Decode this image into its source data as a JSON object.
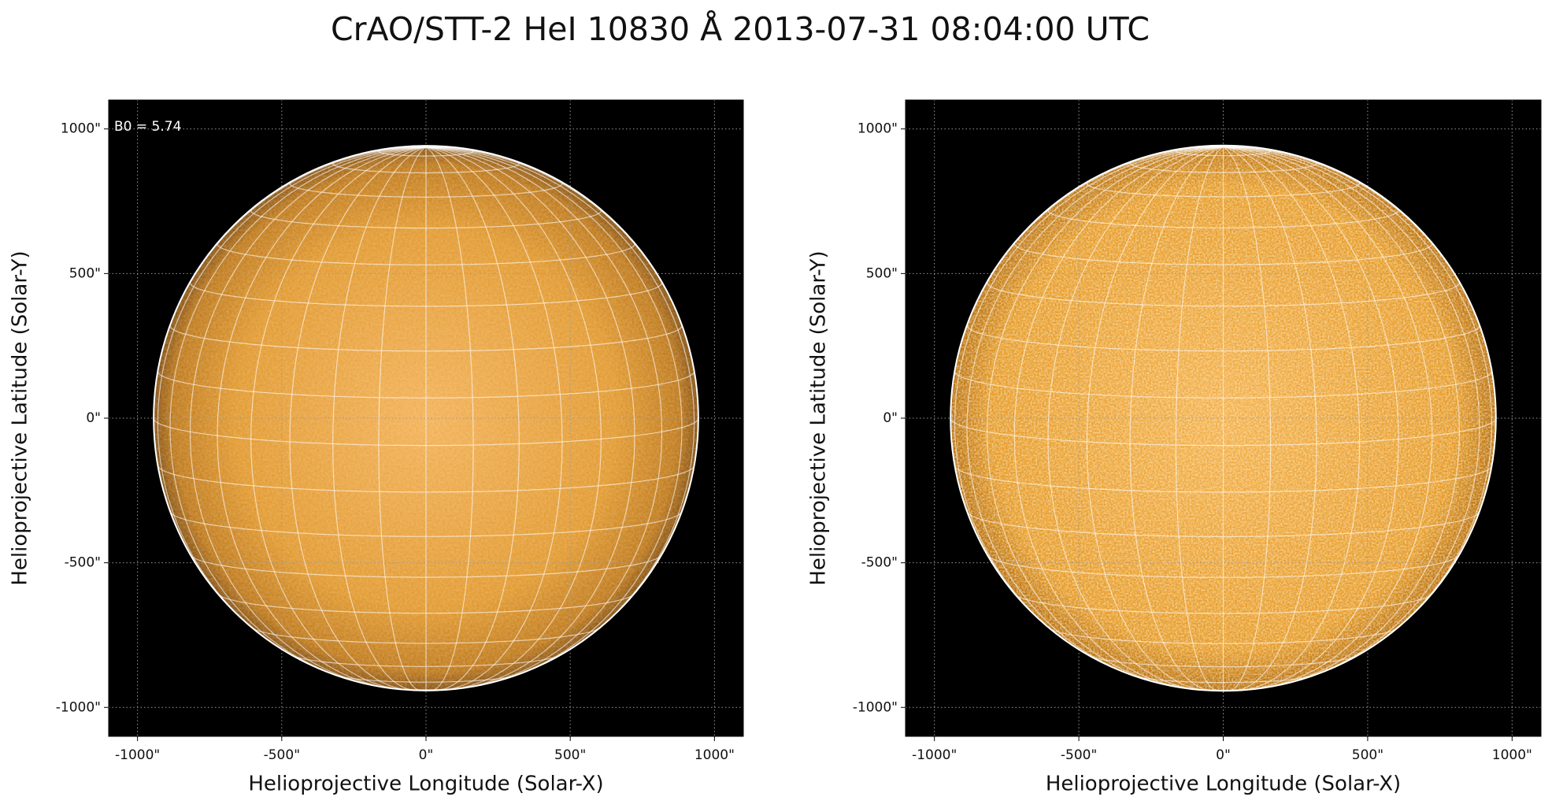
{
  "title": "CrAO/STT-2 HeI 10830 Å 2013-07-31 08:04:00 UTC",
  "chart_data": [
    {
      "type": "image",
      "xlabel": "Helioprojective Longitude (Solar-X)",
      "ylabel": "Helioprojective Latitude (Solar-Y)",
      "annotation": "B0 = 5.74",
      "b0": 5.74,
      "solar_radius": 944,
      "grid": true,
      "xlim": [
        -1100,
        1100
      ],
      "ylim": [
        -1100,
        1100
      ],
      "xticks": [
        {
          "value": -1000,
          "label": "-1000\""
        },
        {
          "value": -500,
          "label": "-500\""
        },
        {
          "value": 0,
          "label": "0\""
        },
        {
          "value": 500,
          "label": "500\""
        },
        {
          "value": 1000,
          "label": "1000\""
        }
      ],
      "yticks": [
        {
          "value": -1000,
          "label": "-1000\""
        },
        {
          "value": -500,
          "label": "-500\""
        },
        {
          "value": 0,
          "label": "0\""
        },
        {
          "value": 500,
          "label": "500\""
        },
        {
          "value": 1000,
          "label": "1000\""
        }
      ]
    },
    {
      "type": "image",
      "xlabel": "Helioprojective Longitude (Solar-X)",
      "ylabel": "Helioprojective Latitude (Solar-Y)",
      "b0": 5.74,
      "solar_radius": 944,
      "grid": true,
      "xlim": [
        -1100,
        1100
      ],
      "ylim": [
        -1100,
        1100
      ],
      "xticks": [
        {
          "value": -1000,
          "label": "-1000\""
        },
        {
          "value": -500,
          "label": "-500\""
        },
        {
          "value": 0,
          "label": "0\""
        },
        {
          "value": 500,
          "label": "500\""
        },
        {
          "value": 1000,
          "label": "1000\""
        }
      ],
      "yticks": [
        {
          "value": -1000,
          "label": "-1000\""
        },
        {
          "value": -500,
          "label": "-500\""
        },
        {
          "value": 0,
          "label": "0\""
        },
        {
          "value": 500,
          "label": "500\""
        },
        {
          "value": 1000,
          "label": "1000\""
        }
      ]
    }
  ]
}
